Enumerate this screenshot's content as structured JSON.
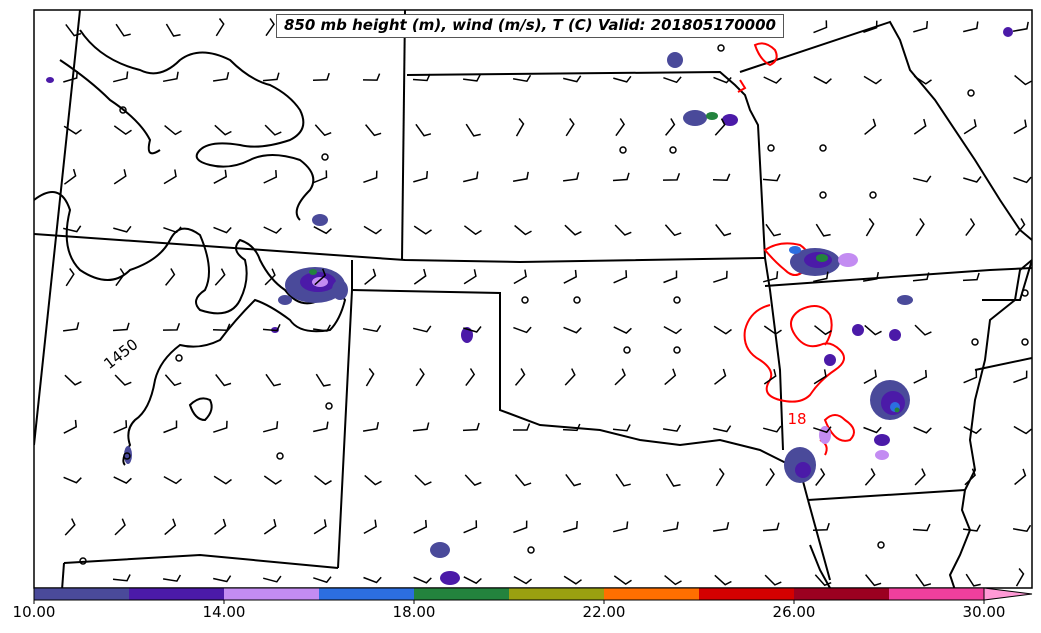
{
  "title": "850 mb height (m), wind (m/s), T (C) Valid: 201805170000",
  "contour_labels": {
    "height": "1450",
    "temperature": "18"
  },
  "colorbar": {
    "colors": [
      "#4a4a9a",
      "#4b1aa8",
      "#c38cf2",
      "#2c6ee0",
      "#23833d",
      "#9aa010",
      "#ff6f00",
      "#d40000",
      "#9b0020",
      "#ef3f9d"
    ],
    "extend_color": "#ff9ad6",
    "tick_labels": [
      "10.00",
      "14.00",
      "18.00",
      "22.00",
      "26.00",
      "30.00"
    ]
  },
  "colors": {
    "height_contour": "#000000",
    "temperature_contour": "#ff0000",
    "boundaries": "#000000"
  },
  "barb_legend": [
    "calm-circle",
    "wind-barb"
  ]
}
